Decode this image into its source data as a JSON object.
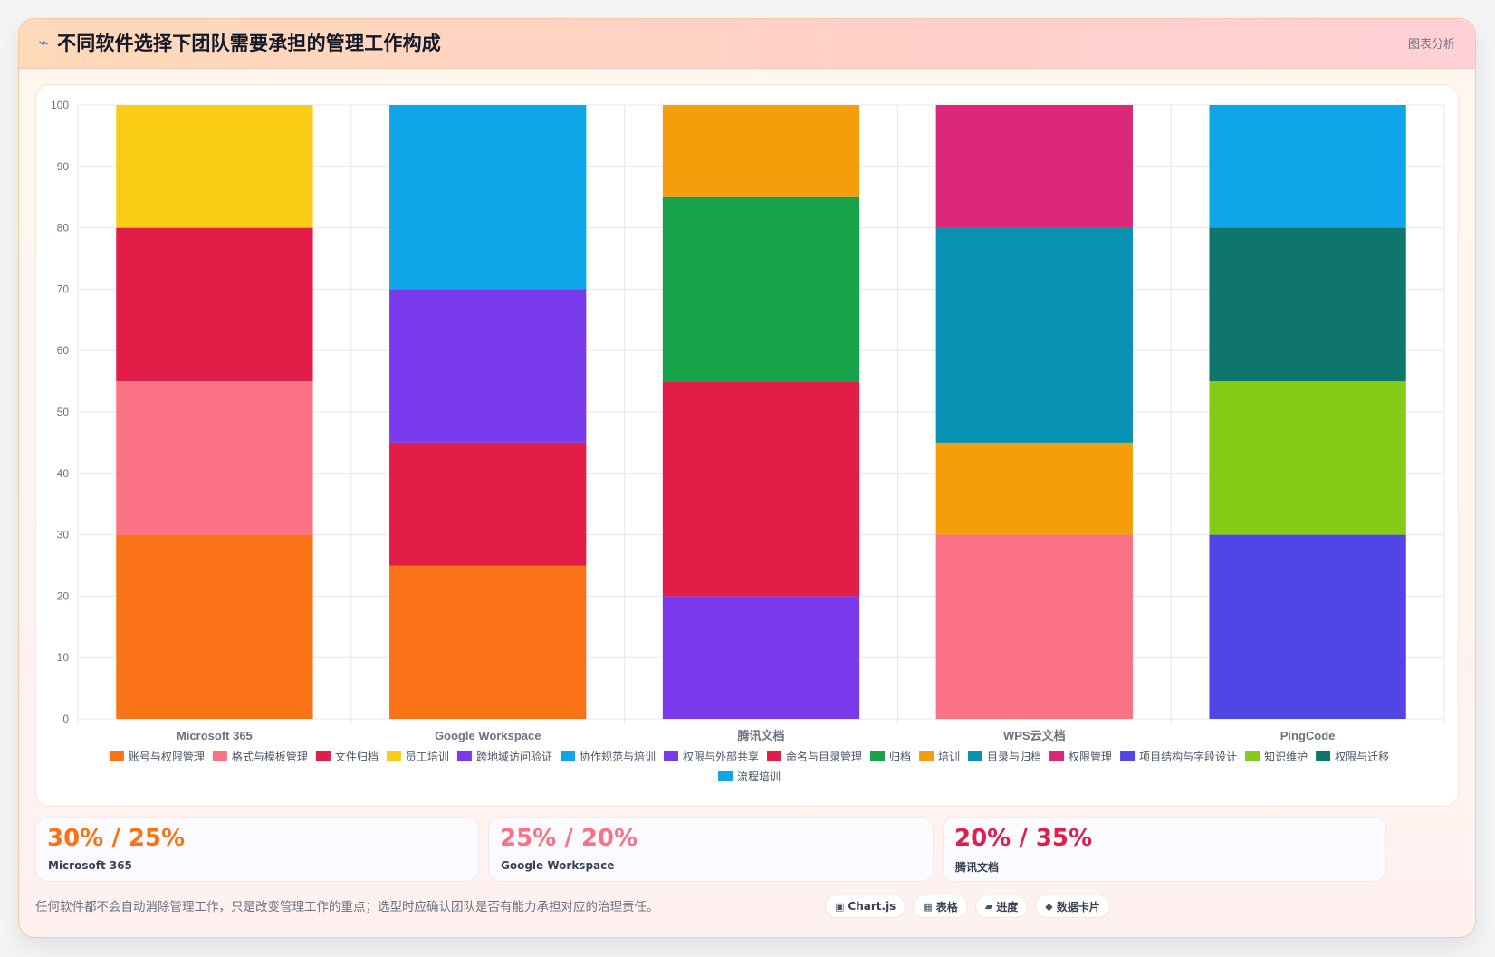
{
  "header": {
    "icon": "lightning-icon",
    "title": "不同软件选择下团队需要承担的管理工作构成",
    "tag": "图表分析"
  },
  "chart_data": {
    "type": "bar",
    "stacked": true,
    "ylim": [
      0,
      100
    ],
    "yticks": [
      0,
      10,
      20,
      30,
      40,
      50,
      60,
      70,
      80,
      90,
      100
    ],
    "grid": true,
    "legend_position": "bottom",
    "categories": [
      "Microsoft 365",
      "Google Workspace",
      "腾讯文档",
      "WPS云文档",
      "PingCode"
    ],
    "series": [
      {
        "name": "账号与权限管理",
        "color": "#f97316",
        "values": [
          30,
          25,
          0,
          0,
          0
        ]
      },
      {
        "name": "格式与模板管理",
        "color": "#fb7185",
        "values": [
          25,
          0,
          0,
          30,
          0
        ]
      },
      {
        "name": "文件归档",
        "color": "#e11d48",
        "values": [
          25,
          20,
          0,
          0,
          0
        ]
      },
      {
        "name": "员工培训",
        "color": "#facc15",
        "values": [
          20,
          0,
          0,
          0,
          0
        ]
      },
      {
        "name": "跨地域访问验证",
        "color": "#7c3aed",
        "values": [
          0,
          25,
          0,
          0,
          0
        ]
      },
      {
        "name": "协作规范与培训",
        "color": "#0ea5e9",
        "values": [
          0,
          30,
          0,
          0,
          0
        ]
      },
      {
        "name": "权限与外部共享",
        "color": "#7c3aed",
        "values": [
          0,
          0,
          20,
          0,
          0
        ]
      },
      {
        "name": "命名与目录管理",
        "color": "#e11d48",
        "values": [
          0,
          0,
          35,
          0,
          0
        ]
      },
      {
        "name": "归档",
        "color": "#16a34a",
        "values": [
          0,
          0,
          30,
          0,
          0
        ]
      },
      {
        "name": "培训",
        "color": "#f59e0b",
        "values": [
          0,
          0,
          15,
          15,
          0
        ]
      },
      {
        "name": "目录与归档",
        "color": "#0891b2",
        "values": [
          0,
          0,
          0,
          35,
          0
        ]
      },
      {
        "name": "权限管理",
        "color": "#db2777",
        "values": [
          0,
          0,
          0,
          20,
          0
        ]
      },
      {
        "name": "项目结构与字段设计",
        "color": "#4f46e5",
        "values": [
          0,
          0,
          0,
          0,
          30
        ]
      },
      {
        "name": "知识维护",
        "color": "#84cc16",
        "values": [
          0,
          0,
          0,
          0,
          25
        ]
      },
      {
        "name": "权限与迁移",
        "color": "#0f766e",
        "values": [
          0,
          0,
          0,
          0,
          25
        ]
      },
      {
        "name": "流程培训",
        "color": "#0ea5e9",
        "values": [
          0,
          0,
          0,
          0,
          20
        ]
      }
    ]
  },
  "kpis": [
    {
      "value": "30% / 25%",
      "label": "Microsoft 365",
      "color": "#f97316"
    },
    {
      "value": "25% / 20%",
      "label": "Google Workspace",
      "color": "#fb7185"
    },
    {
      "value": "20% / 35%",
      "label": "腾讯文档",
      "color": "#e11d48"
    }
  ],
  "footer": {
    "note": "任何软件都不会自动消除管理工作，只是改变管理工作的重点；选型时应确认团队是否有能力承担对应的治理责任。",
    "chips": [
      {
        "icon": "▣",
        "label": "Chart.js"
      },
      {
        "icon": "▦",
        "label": "表格"
      },
      {
        "icon": "▰",
        "label": "进度"
      },
      {
        "icon": "◆",
        "label": "数据卡片"
      }
    ]
  }
}
